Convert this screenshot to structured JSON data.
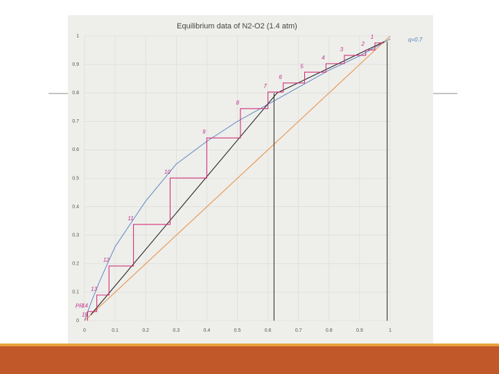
{
  "chart_data": {
    "type": "line",
    "title": "Equilibrium data of N2-O2 (1.4 atm)",
    "xlim": [
      0,
      1
    ],
    "ylim": [
      0,
      1
    ],
    "xticks": [
      0,
      0.1,
      0.2,
      0.3,
      0.4,
      0.5,
      0.6,
      0.7,
      0.8,
      0.9,
      1
    ],
    "yticks": [
      0,
      0.1,
      0.2,
      0.3,
      0.4,
      0.5,
      0.6,
      0.7,
      0.8,
      0.9,
      1
    ],
    "grid": true,
    "series": [
      {
        "color": "#6a8fc4",
        "x": [
          0,
          0.02,
          0.05,
          0.1,
          0.2,
          0.3,
          0.4,
          0.5,
          0.6,
          0.7,
          0.8,
          0.9,
          1
        ],
        "values": [
          0,
          0.06,
          0.14,
          0.26,
          0.42,
          0.55,
          0.63,
          0.7,
          0.76,
          0.82,
          0.88,
          0.93,
          0.99
        ]
      },
      {
        "color": "#e8944a",
        "x": [
          0,
          1
        ],
        "values": [
          0,
          1
        ]
      },
      {
        "color": "#222222",
        "x": [
          0.98,
          0.63,
          0.02
        ],
        "values": [
          0.98,
          0.8,
          0.02
        ]
      },
      {
        "color": "#333333",
        "x": [
          0.62,
          0.62
        ],
        "values": [
          0,
          0.8
        ]
      },
      {
        "color": "#333333",
        "x": [
          0.99,
          0.99
        ],
        "values": [
          0,
          0.98
        ]
      },
      {
        "color": "#d0307a",
        "x": [
          0.98,
          0.95,
          0.95,
          0.92,
          0.92,
          0.85,
          0.85,
          0.79,
          0.79,
          0.72,
          0.72,
          0.65,
          0.65,
          0.6,
          0.6,
          0.51,
          0.51,
          0.4,
          0.4,
          0.28,
          0.28,
          0.16,
          0.16,
          0.08,
          0.08,
          0.04,
          0.04,
          0.01,
          0.01
        ],
        "values": [
          0.976,
          0.976,
          0.951,
          0.951,
          0.932,
          0.932,
          0.903,
          0.903,
          0.873,
          0.873,
          0.835,
          0.835,
          0.803,
          0.803,
          0.745,
          0.745,
          0.642,
          0.642,
          0.501,
          0.501,
          0.338,
          0.338,
          0.192,
          0.192,
          0.09,
          0.09,
          0.032,
          0.032,
          0
        ]
      }
    ],
    "stage_labels": [
      "1",
      "2",
      "3",
      "4",
      "5",
      "6",
      "7",
      "8",
      "9",
      "10",
      "11",
      "12",
      "13",
      "14",
      "15"
    ],
    "annotations": [
      "PR",
      "q=0.7"
    ]
  }
}
